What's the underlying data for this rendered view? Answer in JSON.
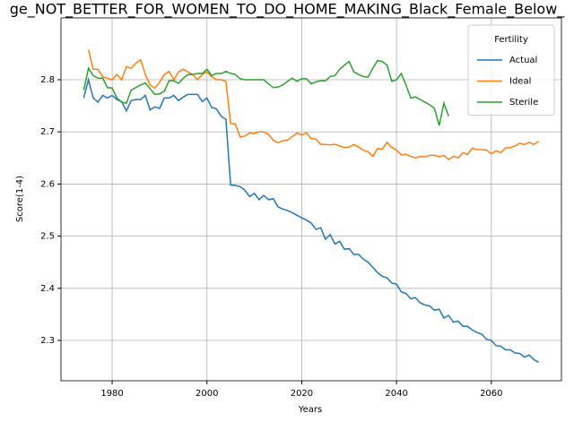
{
  "chart_data": {
    "type": "line",
    "title": "ge_NOT_BETTER_FOR_WOMEN_TO_DO_HOME_MAKING_Black_Female_Below_",
    "x_label": "Years",
    "y_label": "Score(1-4)",
    "legend_title": "Fertility",
    "legend": "upper right",
    "grid": true,
    "x": [
      1974,
      1975,
      1976,
      1977,
      1978,
      1979,
      1980,
      1981,
      1982,
      1983,
      1984,
      1985,
      1986,
      1987,
      1988,
      1989,
      1990,
      1991,
      1992,
      1993,
      1994,
      1995,
      1996,
      1997,
      1998,
      1999,
      2000,
      2001,
      2002,
      2003,
      2004,
      2005,
      2006,
      2007,
      2008,
      2009,
      2010,
      2011,
      2012,
      2013,
      2014,
      2015,
      2016,
      2017,
      2018,
      2019,
      2020,
      2021,
      2022,
      2023,
      2024,
      2025,
      2026,
      2027,
      2028,
      2029,
      2030,
      2031,
      2032,
      2033,
      2034,
      2035,
      2036,
      2037,
      2038,
      2039,
      2040,
      2041,
      2042,
      2043,
      2044,
      2045,
      2046,
      2047,
      2048,
      2049,
      2050,
      2051,
      2052,
      2053,
      2054,
      2055,
      2056,
      2057,
      2058,
      2059,
      2060,
      2061,
      2062,
      2063,
      2064,
      2065,
      2066,
      2067,
      2068,
      2069,
      2070
    ],
    "series": [
      {
        "name": "Actual",
        "color": "#1f77b4",
        "values": [
          2.765,
          2.8,
          2.765,
          2.757,
          2.77,
          2.765,
          2.77,
          2.762,
          2.758,
          2.74,
          2.76,
          2.762,
          2.762,
          2.77,
          2.742,
          2.748,
          2.745,
          2.765,
          2.765,
          2.77,
          2.76,
          2.767,
          2.772,
          2.772,
          2.772,
          2.758,
          2.765,
          2.747,
          2.744,
          2.73,
          2.724,
          2.598,
          2.597,
          2.595,
          2.588,
          2.576,
          2.582,
          2.57,
          2.578,
          2.57,
          2.572,
          2.556,
          2.552,
          2.549,
          2.545,
          2.54,
          2.535,
          2.531,
          2.525,
          2.513,
          2.516,
          2.494,
          2.503,
          2.485,
          2.49,
          2.475,
          2.476,
          2.465,
          2.465,
          2.456,
          2.45,
          2.44,
          2.43,
          2.423,
          2.42,
          2.41,
          2.408,
          2.393,
          2.39,
          2.38,
          2.382,
          2.372,
          2.368,
          2.366,
          2.358,
          2.36,
          2.343,
          2.348,
          2.335,
          2.337,
          2.327,
          2.327,
          2.32,
          2.315,
          2.312,
          2.302,
          2.3,
          2.29,
          2.289,
          2.282,
          2.282,
          2.276,
          2.275,
          2.268,
          2.272,
          2.263,
          2.258
        ]
      },
      {
        "name": "Ideal",
        "color": "#ff7f0e",
        "values": [
          null,
          2.858,
          2.82,
          2.82,
          2.806,
          2.803,
          2.8,
          2.81,
          2.8,
          2.825,
          2.822,
          2.832,
          2.838,
          2.81,
          2.79,
          2.784,
          2.795,
          2.81,
          2.816,
          2.8,
          2.815,
          2.82,
          2.815,
          2.81,
          2.8,
          2.81,
          2.815,
          2.806,
          2.8,
          2.8,
          2.797,
          2.716,
          2.715,
          2.69,
          2.692,
          2.698,
          2.697,
          2.7,
          2.7,
          2.695,
          2.684,
          2.679,
          2.683,
          2.684,
          2.691,
          2.698,
          2.694,
          2.698,
          2.687,
          2.686,
          2.676,
          2.676,
          2.675,
          2.676,
          2.673,
          2.67,
          2.671,
          2.676,
          2.671,
          2.665,
          2.662,
          2.653,
          2.668,
          2.667,
          2.68,
          2.67,
          2.665,
          2.656,
          2.657,
          2.653,
          2.65,
          2.653,
          2.652,
          2.655,
          2.655,
          2.652,
          2.655,
          2.647,
          2.653,
          2.65,
          2.66,
          2.657,
          2.669,
          2.666,
          2.666,
          2.665,
          2.658,
          2.664,
          2.66,
          2.669,
          2.67,
          2.673,
          2.678,
          2.676,
          2.68,
          2.676,
          2.682
        ]
      },
      {
        "name": "Sterile",
        "color": "#2ca02c",
        "values": [
          2.78,
          2.822,
          2.808,
          2.803,
          2.803,
          2.785,
          2.784,
          2.765,
          2.757,
          2.755,
          2.78,
          2.785,
          2.79,
          2.794,
          2.783,
          2.772,
          2.773,
          2.778,
          2.798,
          2.798,
          2.793,
          2.803,
          2.81,
          2.81,
          2.812,
          2.812,
          2.82,
          2.808,
          2.812,
          2.812,
          2.816,
          2.812,
          2.81,
          2.802,
          2.8,
          2.8,
          2.8,
          2.8,
          2.8,
          2.792,
          2.785,
          2.786,
          2.79,
          2.797,
          2.803,
          2.797,
          2.802,
          2.802,
          2.792,
          2.796,
          2.798,
          2.798,
          2.806,
          2.808,
          2.82,
          2.828,
          2.835,
          2.815,
          2.81,
          2.806,
          2.805,
          2.822,
          2.837,
          2.835,
          2.828,
          2.797,
          2.8,
          2.812,
          2.79,
          2.765,
          2.767,
          2.762,
          2.757,
          2.752,
          2.745,
          2.712,
          2.755,
          2.73,
          null,
          null,
          null,
          null,
          null,
          null,
          null,
          null,
          null,
          null,
          null,
          null,
          null,
          null,
          null,
          null,
          null,
          null,
          null
        ]
      }
    ],
    "xlim": [
      1969.2,
      2074.8
    ],
    "xticks": [
      1980,
      2000,
      2020,
      2040,
      2060
    ],
    "ylim": [
      2.2227,
      2.9186
    ],
    "yticks": [
      2.3,
      2.4,
      2.5,
      2.6,
      2.7,
      2.8
    ]
  }
}
